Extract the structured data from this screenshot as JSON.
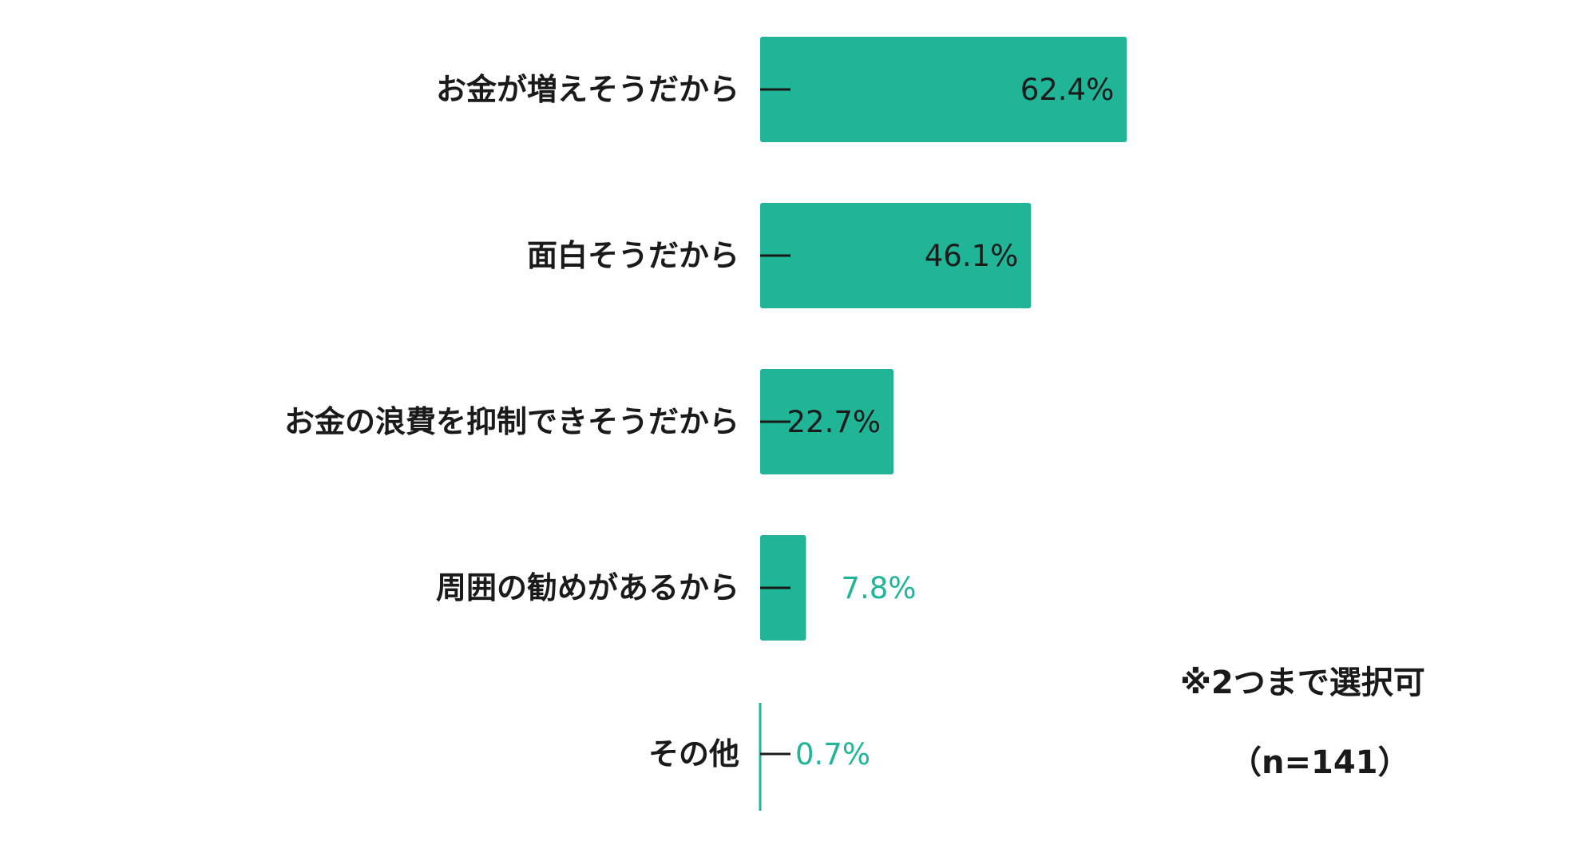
{
  "chart_data": {
    "type": "bar",
    "orientation": "horizontal",
    "categories": [
      "お金が増えそうだから",
      "面白そうだから",
      "お金の浪費を抑制できそうだから",
      "周囲の勧めがあるから",
      "その他"
    ],
    "values": [
      62.4,
      46.1,
      22.7,
      7.8,
      0.7
    ],
    "value_labels": [
      "62.4%",
      "46.1%",
      "22.7%",
      "7.8%",
      "0.7%"
    ],
    "unit": "%",
    "xlim": [
      0,
      100
    ],
    "grid": false,
    "legend": "none",
    "bar_color": "#20b597",
    "label_inside_color": "#1a1a1a",
    "label_outside_color": "#20b597"
  },
  "notes": {
    "selection": "※2つまで選択可",
    "sample": "（n=141）"
  }
}
